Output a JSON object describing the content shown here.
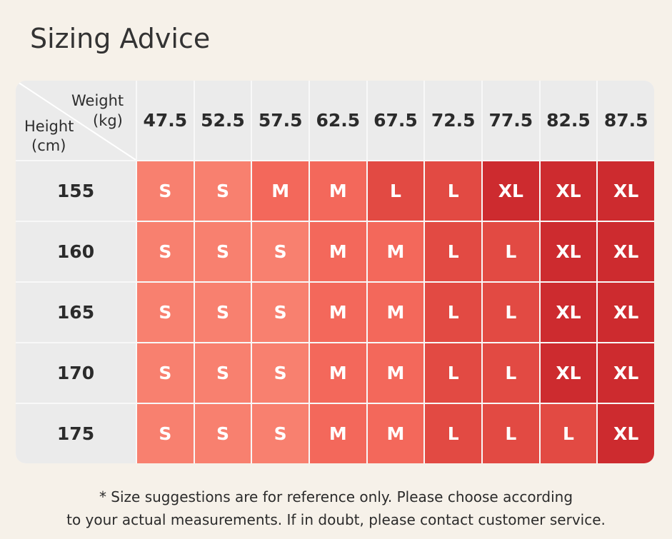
{
  "title": "Sizing Advice",
  "table": {
    "corner": {
      "weight": [
        "Weight",
        "(kg)"
      ],
      "height": [
        "Height",
        "(cm)"
      ]
    },
    "columns": [
      "47.5",
      "52.5",
      "57.5",
      "62.5",
      "67.5",
      "72.5",
      "77.5",
      "82.5",
      "87.5"
    ],
    "rows": [
      {
        "height": "155",
        "sizes": [
          "S",
          "S",
          "M",
          "M",
          "L",
          "L",
          "XL",
          "XL",
          "XL"
        ]
      },
      {
        "height": "160",
        "sizes": [
          "S",
          "S",
          "S",
          "M",
          "M",
          "L",
          "L",
          "XL",
          "XL"
        ]
      },
      {
        "height": "165",
        "sizes": [
          "S",
          "S",
          "S",
          "M",
          "M",
          "L",
          "L",
          "XL",
          "XL"
        ]
      },
      {
        "height": "170",
        "sizes": [
          "S",
          "S",
          "S",
          "M",
          "M",
          "L",
          "L",
          "XL",
          "XL"
        ]
      },
      {
        "height": "175",
        "sizes": [
          "S",
          "S",
          "S",
          "M",
          "M",
          "L",
          "L",
          "L",
          "XL"
        ]
      }
    ],
    "size_colors": {
      "S": "#f8806f",
      "M": "#f3685b",
      "L": "#e24a43",
      "XL": "#cd2b2f"
    }
  },
  "note": [
    "* Size suggestions are for reference only. Please choose according",
    "to your actual measurements. If in doubt, please contact customer service."
  ]
}
